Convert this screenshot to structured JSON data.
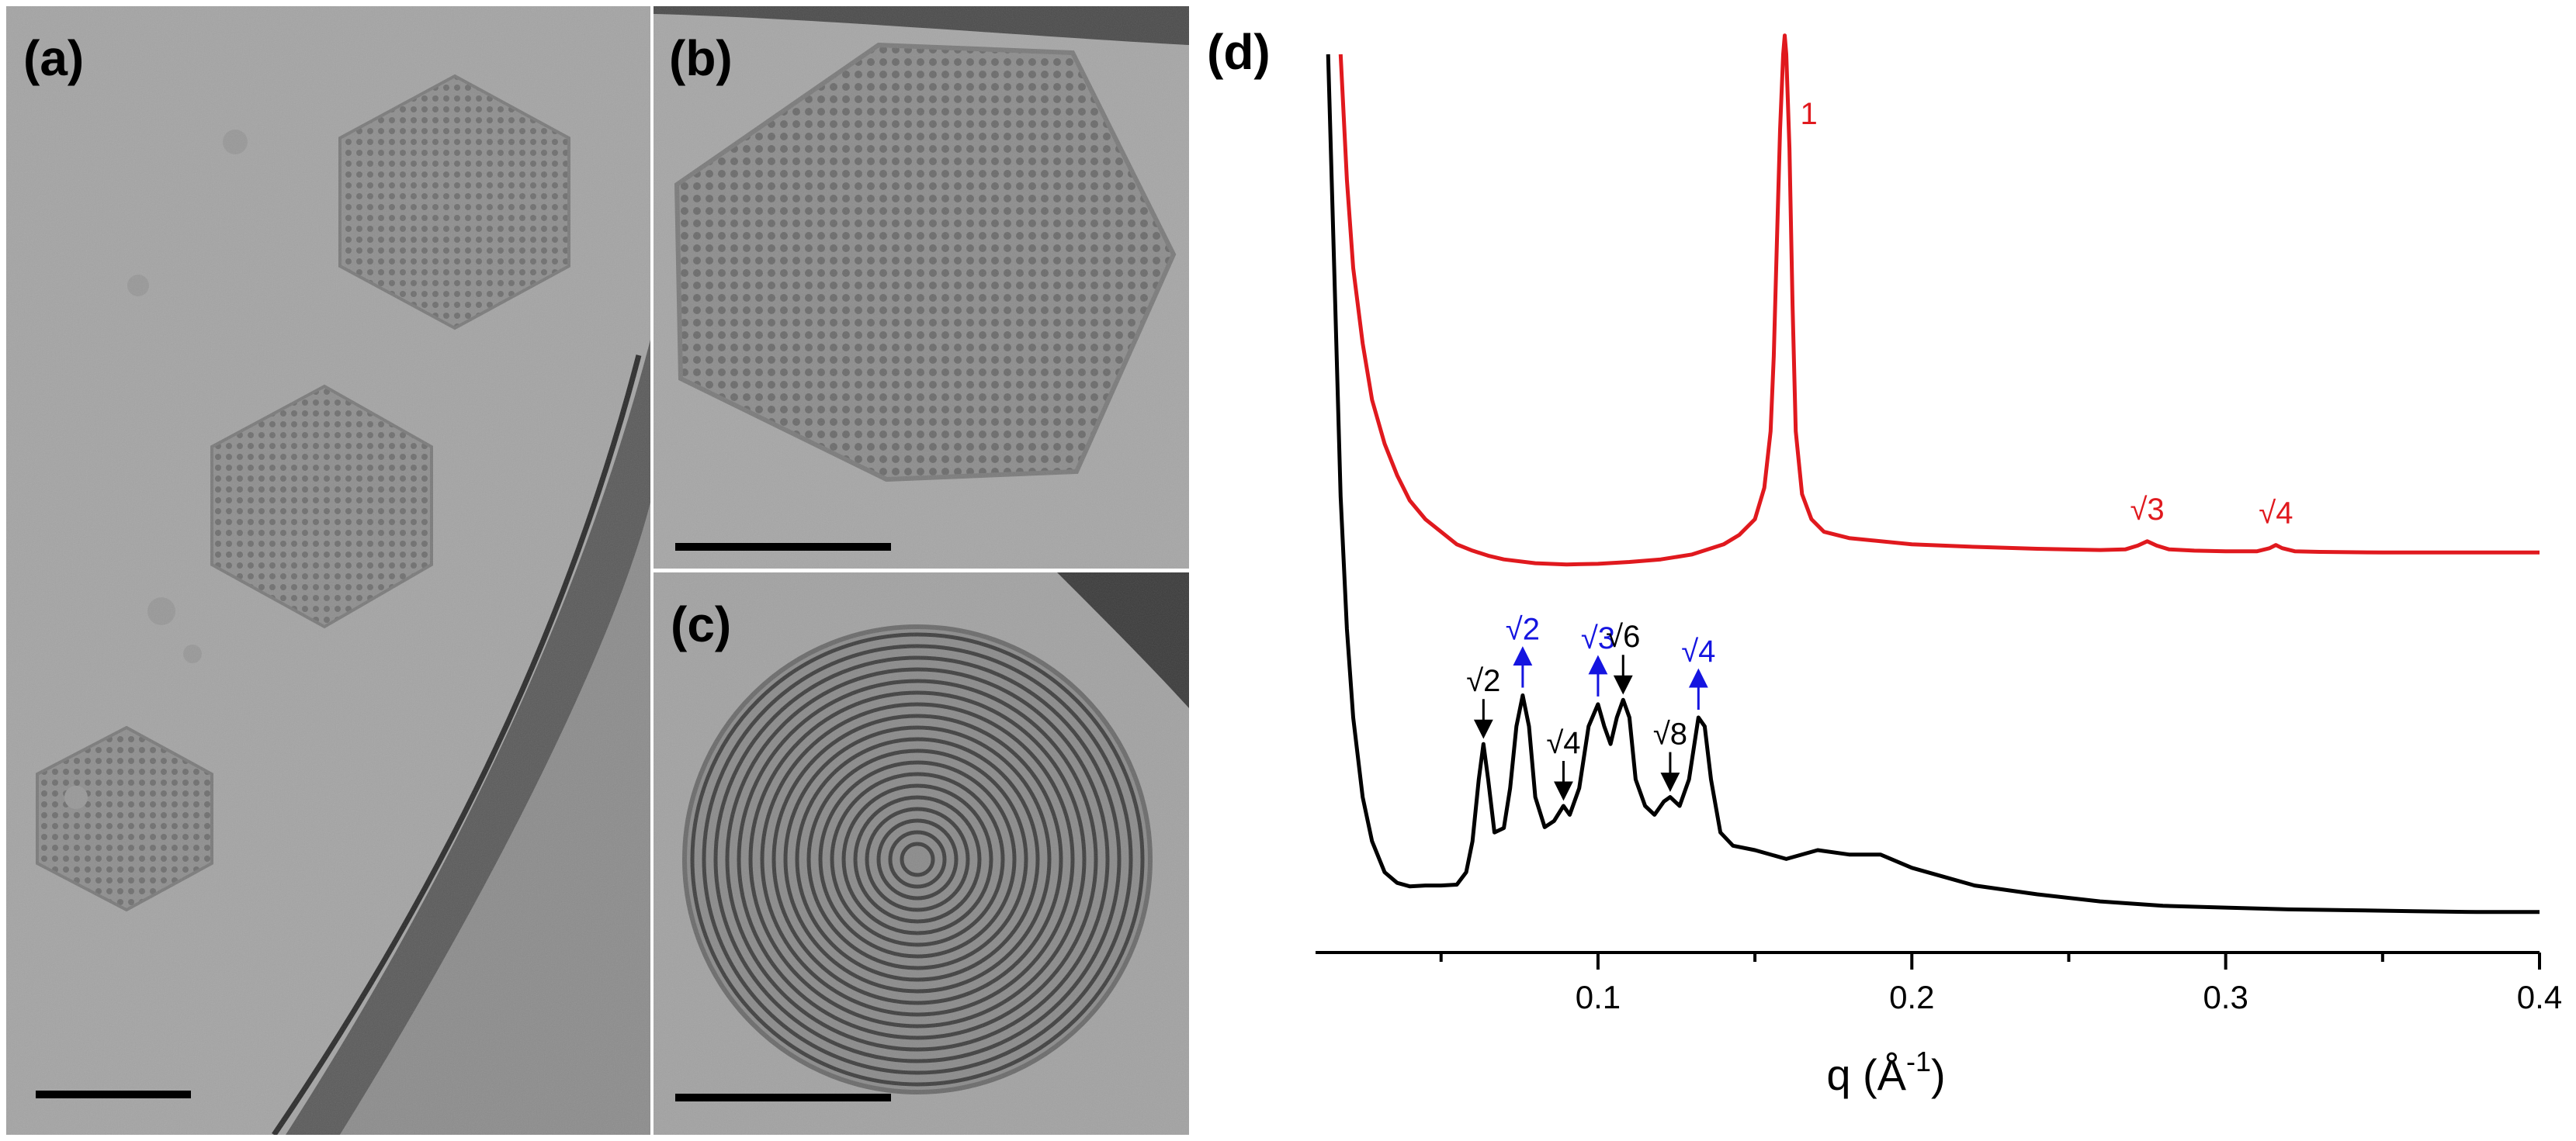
{
  "panels": {
    "a": {
      "label": "(a)"
    },
    "b": {
      "label": "(b)"
    },
    "c": {
      "label": "(c)"
    },
    "d": {
      "label": "(d)"
    }
  },
  "chart_data": {
    "type": "line",
    "xlabel": "q (Å",
    "xlabel_sup": "-1",
    "xlabel_close": ")",
    "xlim": [
      0.01,
      0.4
    ],
    "xticks": [
      0.1,
      0.2,
      0.3,
      0.4
    ],
    "xtick_labels": [
      "0.1",
      "0.2",
      "0.3",
      "0.4"
    ],
    "grid": false,
    "series": [
      {
        "color": "#e0191e",
        "x": [
          0.018,
          0.02,
          0.022,
          0.025,
          0.028,
          0.032,
          0.036,
          0.04,
          0.045,
          0.05,
          0.055,
          0.06,
          0.065,
          0.07,
          0.08,
          0.09,
          0.1,
          0.11,
          0.12,
          0.13,
          0.14,
          0.145,
          0.15,
          0.153,
          0.155,
          0.156,
          0.157,
          0.158,
          0.159,
          0.1595,
          0.16,
          0.161,
          0.162,
          0.163,
          0.165,
          0.168,
          0.172,
          0.18,
          0.2,
          0.22,
          0.24,
          0.26,
          0.268,
          0.272,
          0.275,
          0.278,
          0.282,
          0.29,
          0.3,
          0.31,
          0.314,
          0.316,
          0.318,
          0.322,
          0.33,
          0.35,
          0.37,
          0.39,
          0.4
        ],
        "y": [
          100,
          80,
          66,
          54,
          45,
          38,
          33,
          29,
          26,
          24,
          22,
          21,
          20.2,
          19.6,
          19.0,
          18.8,
          18.9,
          19.2,
          19.6,
          20.4,
          22,
          23.5,
          26,
          31,
          40,
          52,
          70,
          88,
          100,
          103,
          100,
          85,
          60,
          40,
          30,
          26,
          24,
          23,
          22,
          21.6,
          21.3,
          21.1,
          21.2,
          21.8,
          22.5,
          21.8,
          21.2,
          21.0,
          20.9,
          20.9,
          21.4,
          21.9,
          21.4,
          20.9,
          20.8,
          20.7,
          20.7,
          20.7,
          20.7
        ]
      },
      {
        "color": "#000000",
        "x": [
          0.014,
          0.016,
          0.018,
          0.02,
          0.022,
          0.025,
          0.028,
          0.032,
          0.036,
          0.04,
          0.045,
          0.05,
          0.055,
          0.058,
          0.06,
          0.062,
          0.0635,
          0.065,
          0.067,
          0.07,
          0.072,
          0.074,
          0.076,
          0.078,
          0.08,
          0.083,
          0.086,
          0.089,
          0.091,
          0.094,
          0.097,
          0.1,
          0.102,
          0.104,
          0.106,
          0.108,
          0.11,
          0.112,
          0.115,
          0.118,
          0.121,
          0.123,
          0.126,
          0.129,
          0.132,
          0.134,
          0.136,
          0.139,
          0.143,
          0.15,
          0.16,
          0.17,
          0.18,
          0.19,
          0.2,
          0.21,
          0.22,
          0.24,
          0.26,
          0.28,
          0.3,
          0.32,
          0.34,
          0.36,
          0.38,
          0.4
        ],
        "y": [
          100,
          75,
          50,
          35,
          25,
          16,
          11,
          7.5,
          6.3,
          5.9,
          6.0,
          6.0,
          6.1,
          7.5,
          11,
          18,
          22,
          18,
          12,
          12.5,
          17,
          24,
          27.5,
          24,
          16,
          12.6,
          13.3,
          15,
          14,
          17,
          24,
          26.5,
          24,
          22,
          25,
          27,
          25,
          18,
          15,
          14,
          15.5,
          16,
          15,
          18,
          25,
          24,
          18,
          12,
          10.5,
          10,
          9,
          10,
          9.5,
          9.5,
          8,
          7,
          6,
          5,
          4.2,
          3.7,
          3.5,
          3.3,
          3.2,
          3.1,
          3.0,
          3.0
        ]
      }
    ],
    "annotations": [
      {
        "text": "1",
        "color": "#e0191e",
        "x": 0.159,
        "arrow": false
      },
      {
        "text": "√3",
        "color": "#e0191e",
        "x": 0.275,
        "arrow": false
      },
      {
        "text": "√4",
        "color": "#e0191e",
        "x": 0.316,
        "arrow": false
      },
      {
        "text": "√2",
        "color": "#000000",
        "x": 0.0635,
        "arrow": true
      },
      {
        "text": "√2",
        "color": "#1515e0",
        "x": 0.076,
        "arrow": true
      },
      {
        "text": "√4",
        "color": "#000000",
        "x": 0.089,
        "arrow": true
      },
      {
        "text": "√3",
        "color": "#1515e0",
        "x": 0.1,
        "arrow": true
      },
      {
        "text": "√6",
        "color": "#000000",
        "x": 0.108,
        "arrow": true
      },
      {
        "text": "√8",
        "color": "#000000",
        "x": 0.123,
        "arrow": true
      },
      {
        "text": "√4",
        "color": "#1515e0",
        "x": 0.132,
        "arrow": true
      }
    ]
  }
}
